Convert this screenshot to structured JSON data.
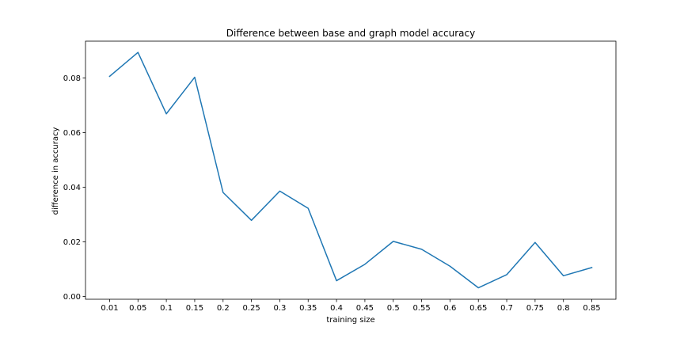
{
  "chart_data": {
    "type": "line",
    "title": "Difference between base and graph model accuracy",
    "xlabel": "training size",
    "ylabel": "difference in accuracy",
    "categories": [
      "0.01",
      "0.05",
      "0.1",
      "0.15",
      "0.2",
      "0.25",
      "0.3",
      "0.35",
      "0.4",
      "0.45",
      "0.5",
      "0.55",
      "0.6",
      "0.65",
      "0.7",
      "0.75",
      "0.8",
      "0.85"
    ],
    "series": [
      {
        "values": [
          0.0806,
          0.0894,
          0.0669,
          0.0803,
          0.0381,
          0.0279,
          0.0386,
          0.0323,
          0.0058,
          0.0118,
          0.0202,
          0.0173,
          0.0111,
          0.0032,
          0.008,
          0.0198,
          0.0076,
          0.0106
        ],
        "color": "#1f77b4"
      }
    ],
    "ylim": [
      -0.001,
      0.0935
    ],
    "yticks": [
      0.0,
      0.02,
      0.04,
      0.06,
      0.08
    ],
    "ytick_labels": [
      "0.00",
      "0.02",
      "0.04",
      "0.06",
      "0.08"
    ],
    "grid": false,
    "legend": "none"
  }
}
